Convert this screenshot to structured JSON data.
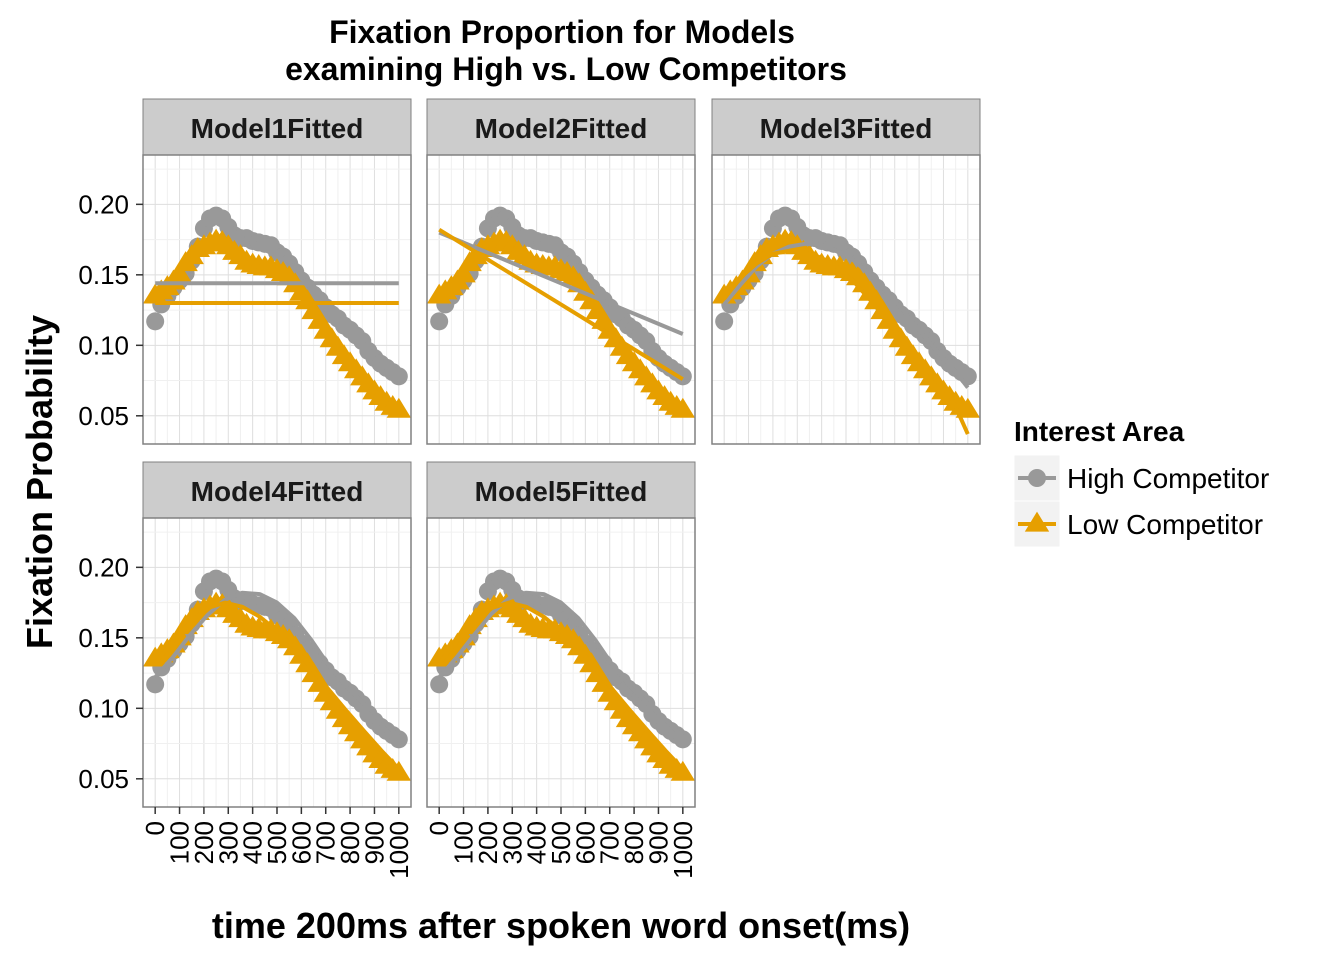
{
  "chart_data": {
    "type": "line",
    "title_lines": [
      "Fixation Proportion for Models",
      "examining High vs. Low Competitors"
    ],
    "xlabel": "time 200ms after spoken word onset(ms)",
    "ylabel": "Fixation Probability",
    "x_ticks": [
      0,
      100,
      200,
      300,
      400,
      500,
      600,
      700,
      800,
      900,
      1000
    ],
    "y_ticks": [
      0.05,
      0.1,
      0.15,
      0.2
    ],
    "xlim": [
      -50,
      1050
    ],
    "ylim": [
      0.03,
      0.235
    ],
    "grid": true,
    "legend": {
      "title": "Interest Area",
      "position": "right",
      "entries": [
        {
          "label": "High Competitor",
          "color": "#999999",
          "marker": "circle"
        },
        {
          "label": "Low Competitor",
          "color": "#E69F00",
          "marker": "triangle"
        }
      ]
    },
    "x": [
      0,
      25,
      50,
      75,
      100,
      125,
      150,
      175,
      200,
      225,
      250,
      275,
      300,
      325,
      350,
      375,
      400,
      425,
      450,
      475,
      500,
      525,
      550,
      575,
      600,
      625,
      650,
      675,
      700,
      725,
      750,
      775,
      800,
      825,
      850,
      875,
      900,
      925,
      950,
      975,
      1000
    ],
    "observed": [
      {
        "name": "High Competitor",
        "values": [
          0.117,
          0.129,
          0.135,
          0.141,
          0.146,
          0.151,
          0.16,
          0.17,
          0.183,
          0.19,
          0.192,
          0.19,
          0.184,
          0.178,
          0.176,
          0.176,
          0.174,
          0.173,
          0.172,
          0.171,
          0.166,
          0.163,
          0.158,
          0.152,
          0.146,
          0.141,
          0.136,
          0.132,
          0.127,
          0.122,
          0.119,
          0.114,
          0.111,
          0.107,
          0.103,
          0.096,
          0.091,
          0.087,
          0.084,
          0.081,
          0.078
        ]
      },
      {
        "name": "Low Competitor",
        "values": [
          0.135,
          0.138,
          0.141,
          0.145,
          0.15,
          0.158,
          0.163,
          0.168,
          0.17,
          0.172,
          0.174,
          0.173,
          0.17,
          0.166,
          0.163,
          0.159,
          0.157,
          0.156,
          0.155,
          0.155,
          0.153,
          0.151,
          0.148,
          0.143,
          0.137,
          0.131,
          0.124,
          0.117,
          0.11,
          0.104,
          0.098,
          0.092,
          0.087,
          0.082,
          0.077,
          0.072,
          0.067,
          0.063,
          0.059,
          0.056,
          0.054
        ]
      }
    ],
    "panels": [
      {
        "label": "Model1Fitted",
        "fitted": [
          {
            "name": "High Competitor",
            "values": [
              0.144,
              0.144
            ]
          },
          {
            "name": "Low Competitor",
            "values": [
              0.13,
              0.13
            ]
          }
        ],
        "fitted_x": [
          0,
          1000
        ]
      },
      {
        "label": "Model2Fitted",
        "fitted": [
          {
            "name": "High Competitor",
            "values": [
              0.18,
              0.108
            ]
          },
          {
            "name": "Low Competitor",
            "values": [
              0.182,
              0.076
            ]
          }
        ],
        "fitted_x": [
          0,
          1000
        ]
      },
      {
        "label": "Model3Fitted",
        "fitted": [
          {
            "name": "High Competitor",
            "values": [
              0.129,
              0.143,
              0.156,
              0.165,
              0.17,
              0.172,
              0.171,
              0.167,
              0.16,
              0.15,
              0.138,
              0.125,
              0.111,
              0.097,
              0.085,
              0.07
            ]
          },
          {
            "name": "Low Competitor",
            "values": [
              0.133,
              0.148,
              0.158,
              0.165,
              0.167,
              0.166,
              0.162,
              0.155,
              0.145,
              0.132,
              0.118,
              0.103,
              0.089,
              0.076,
              0.063,
              0.037
            ]
          }
        ],
        "fitted_x": [
          0,
          67,
          133,
          200,
          267,
          333,
          400,
          467,
          533,
          600,
          667,
          733,
          800,
          867,
          933,
          1000
        ]
      },
      {
        "label": "Model4Fitted",
        "fitted": [
          {
            "name": "High Competitor",
            "values": [
              0.122,
              0.136,
              0.152,
              0.166,
              0.177,
              0.182,
              0.181,
              0.175,
              0.164,
              0.148,
              0.13,
              0.115,
              0.103,
              0.092,
              0.08
            ]
          },
          {
            "name": "Low Competitor",
            "values": [
              0.132,
              0.147,
              0.161,
              0.171,
              0.175,
              0.172,
              0.165,
              0.155,
              0.143,
              0.128,
              0.113,
              0.098,
              0.084,
              0.07,
              0.057
            ]
          }
        ],
        "fitted_x": [
          0,
          71,
          143,
          214,
          286,
          357,
          429,
          500,
          571,
          643,
          714,
          786,
          857,
          929,
          1000
        ]
      },
      {
        "label": "Model5Fitted",
        "fitted": [
          {
            "name": "High Competitor",
            "values": [
              0.122,
              0.136,
              0.152,
              0.167,
              0.178,
              0.182,
              0.181,
              0.175,
              0.164,
              0.148,
              0.13,
              0.115,
              0.103,
              0.092,
              0.08
            ]
          },
          {
            "name": "Low Competitor",
            "values": [
              0.132,
              0.147,
              0.161,
              0.171,
              0.175,
              0.172,
              0.165,
              0.155,
              0.143,
              0.128,
              0.113,
              0.098,
              0.084,
              0.07,
              0.057
            ]
          }
        ],
        "fitted_x": [
          0,
          71,
          143,
          214,
          286,
          357,
          429,
          500,
          571,
          643,
          714,
          786,
          857,
          929,
          1000
        ]
      }
    ]
  }
}
